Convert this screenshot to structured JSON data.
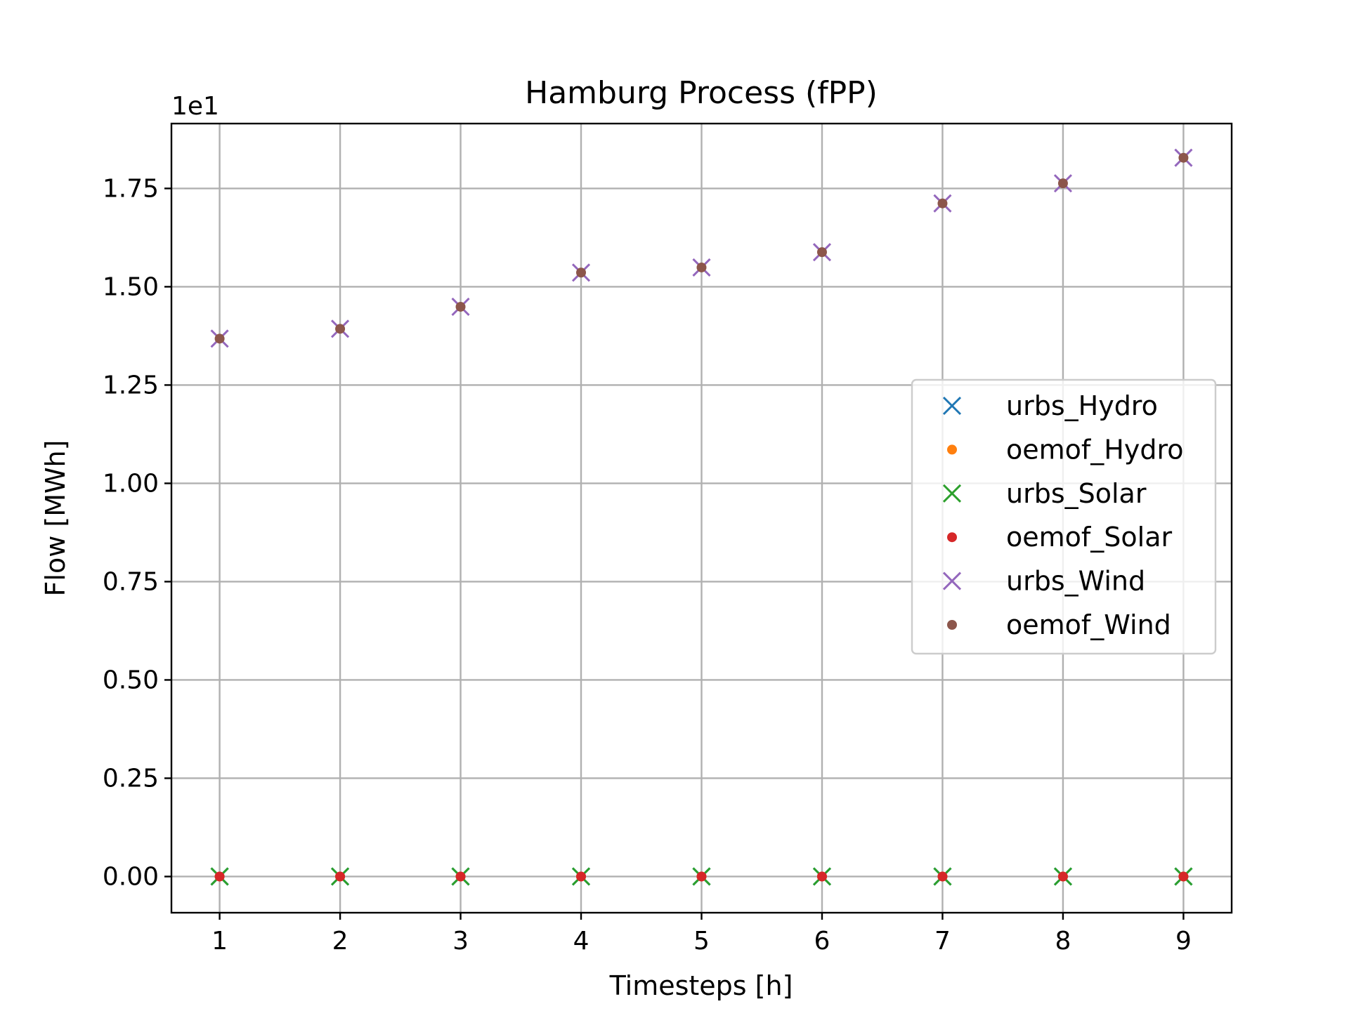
{
  "chart_data": {
    "type": "scatter",
    "title": "Hamburg Process (fPP)",
    "xlabel": "Timesteps [h]",
    "ylabel": "Flow [MWh]",
    "y_offset_text": "1e1",
    "x": [
      1,
      2,
      3,
      4,
      5,
      6,
      7,
      8,
      9
    ],
    "xlim": [
      0.6,
      9.4
    ],
    "ylim": [
      -0.092,
      1.915
    ],
    "xticks": [
      1,
      2,
      3,
      4,
      5,
      6,
      7,
      8,
      9
    ],
    "yticks": [
      0.0,
      0.25,
      0.5,
      0.75,
      1.0,
      1.25,
      1.5,
      1.75
    ],
    "ytick_labels": [
      "0.00",
      "0.25",
      "0.50",
      "0.75",
      "1.00",
      "1.25",
      "1.50",
      "1.75"
    ],
    "grid": true,
    "legend_position": "center-right",
    "series": [
      {
        "name": "urbs_Hydro",
        "marker": "x",
        "color": "#1f77b4",
        "values": [
          0,
          0,
          0,
          0,
          0,
          0,
          0,
          0,
          0
        ]
      },
      {
        "name": "oemof_Hydro",
        "marker": "dot",
        "color": "#ff7f0e",
        "values": [
          0,
          0,
          0,
          0,
          0,
          0,
          0,
          0,
          0
        ]
      },
      {
        "name": "urbs_Solar",
        "marker": "x",
        "color": "#2ca02c",
        "values": [
          0,
          0,
          0,
          0,
          0,
          0,
          0,
          0,
          0
        ]
      },
      {
        "name": "oemof_Solar",
        "marker": "dot",
        "color": "#d62728",
        "values": [
          0,
          0,
          0,
          0,
          0,
          0,
          0,
          0,
          0
        ]
      },
      {
        "name": "urbs_Wind",
        "marker": "x",
        "color": "#9467bd",
        "values": [
          1.368,
          1.393,
          1.449,
          1.536,
          1.549,
          1.588,
          1.712,
          1.763,
          1.828
        ]
      },
      {
        "name": "oemof_Wind",
        "marker": "dot",
        "color": "#8c564b",
        "values": [
          1.368,
          1.393,
          1.449,
          1.536,
          1.549,
          1.588,
          1.712,
          1.763,
          1.828
        ]
      }
    ]
  }
}
